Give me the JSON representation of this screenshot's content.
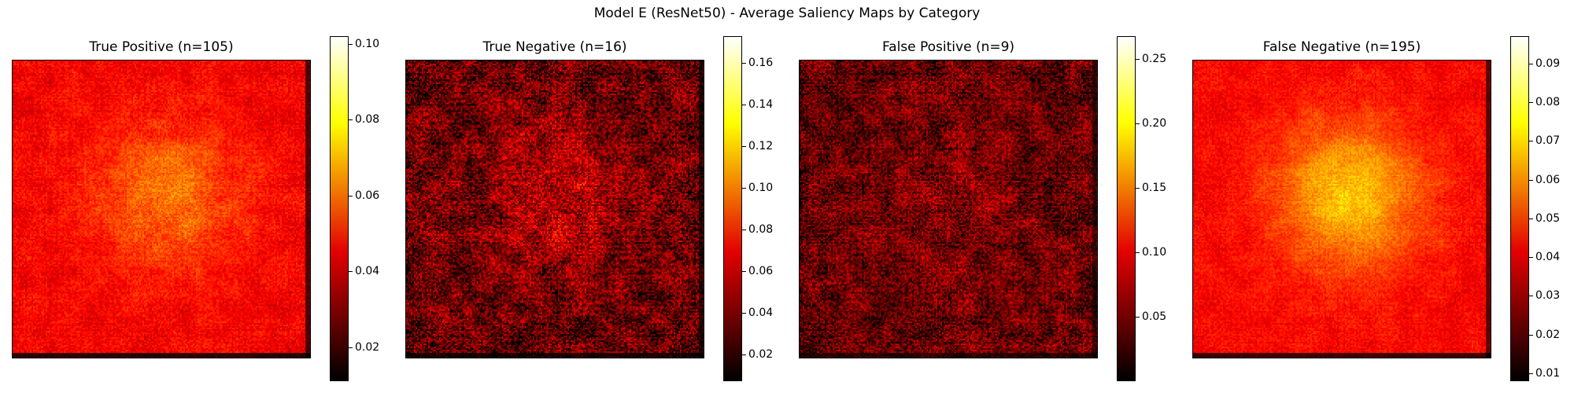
{
  "chart_data": {
    "type": "heatmap",
    "title": "Model E (ResNet50) - Average Saliency Maps by Category",
    "colormap": "hot",
    "panels": [
      {
        "title": "True Positive (n=105)",
        "colorbar": {
          "min": 0.011,
          "max": 0.102,
          "ticks": [
            0.02,
            0.04,
            0.06,
            0.08,
            0.1
          ],
          "tick_labels": [
            "0.02",
            "0.04",
            "0.06",
            "0.08",
            "0.10"
          ]
        },
        "pattern": {
          "base": 0.045,
          "center_peak": 0.062,
          "noise": 0.006
        }
      },
      {
        "title": "True Negative (n=16)",
        "colorbar": {
          "min": 0.007,
          "max": 0.173,
          "ticks": [
            0.02,
            0.04,
            0.06,
            0.08,
            0.1,
            0.12,
            0.14,
            0.16
          ],
          "tick_labels": [
            "0.02",
            "0.04",
            "0.06",
            "0.08",
            "0.10",
            "0.12",
            "0.14",
            "0.16"
          ]
        },
        "pattern": {
          "base": 0.035,
          "center_peak": 0.06,
          "noise": 0.025
        }
      },
      {
        "title": "False Positive (n=9)",
        "colorbar": {
          "min": 0.0,
          "max": 0.268,
          "ticks": [
            0.05,
            0.1,
            0.15,
            0.2,
            0.25
          ],
          "tick_labels": [
            "0.05",
            "0.10",
            "0.15",
            "0.20",
            "0.25"
          ]
        },
        "pattern": {
          "base": 0.045,
          "center_peak": 0.06,
          "noise": 0.035
        }
      },
      {
        "title": "False Negative (n=195)",
        "colorbar": {
          "min": 0.008,
          "max": 0.097,
          "ticks": [
            0.01,
            0.02,
            0.03,
            0.04,
            0.05,
            0.06,
            0.07,
            0.08,
            0.09
          ],
          "tick_labels": [
            "0.01",
            "0.02",
            "0.03",
            "0.04",
            "0.05",
            "0.06",
            "0.07",
            "0.08",
            "0.09"
          ]
        },
        "pattern": {
          "base": 0.042,
          "center_peak": 0.068,
          "noise": 0.005
        }
      }
    ]
  }
}
